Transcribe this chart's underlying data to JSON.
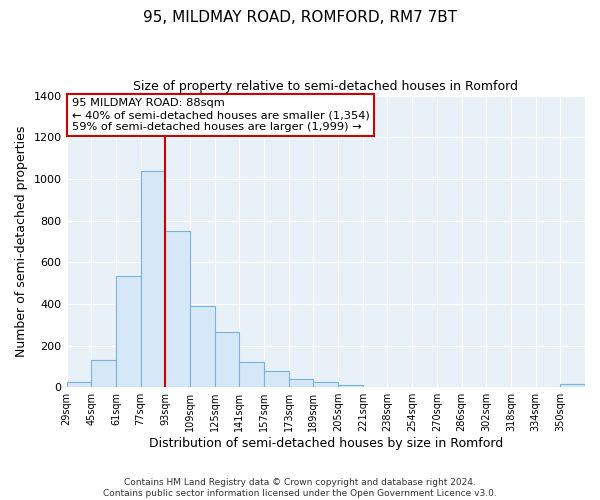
{
  "title": "95, MILDMAY ROAD, ROMFORD, RM7 7BT",
  "subtitle": "Size of property relative to semi-detached houses in Romford",
  "xlabel": "Distribution of semi-detached houses by size in Romford",
  "ylabel": "Number of semi-detached properties",
  "bar_labels": [
    "29sqm",
    "45sqm",
    "61sqm",
    "77sqm",
    "93sqm",
    "109sqm",
    "125sqm",
    "141sqm",
    "157sqm",
    "173sqm",
    "189sqm",
    "205sqm",
    "221sqm",
    "238sqm",
    "254sqm",
    "270sqm",
    "286sqm",
    "302sqm",
    "318sqm",
    "334sqm",
    "350sqm"
  ],
  "bar_values": [
    25,
    130,
    535,
    1040,
    750,
    390,
    265,
    120,
    80,
    40,
    25,
    10,
    0,
    0,
    0,
    0,
    0,
    0,
    0,
    0,
    15
  ],
  "bar_color": "#d6e8f7",
  "bar_edge_color": "#7ab3d8",
  "vline_x": 4,
  "vline_color": "#cc0000",
  "annotation_title": "95 MILDMAY ROAD: 88sqm",
  "annotation_line1": "← 40% of semi-detached houses are smaller (1,354)",
  "annotation_line2": "59% of semi-detached houses are larger (1,999) →",
  "annotation_box_color": "white",
  "annotation_box_edge": "#cc0000",
  "ylim": [
    0,
    1400
  ],
  "yticks": [
    0,
    200,
    400,
    600,
    800,
    1000,
    1200,
    1400
  ],
  "footer_line1": "Contains HM Land Registry data © Crown copyright and database right 2024.",
  "footer_line2": "Contains public sector information licensed under the Open Government Licence v3.0.",
  "fig_bg_color": "#ffffff",
  "plot_bg_color": "#e8f0f8"
}
